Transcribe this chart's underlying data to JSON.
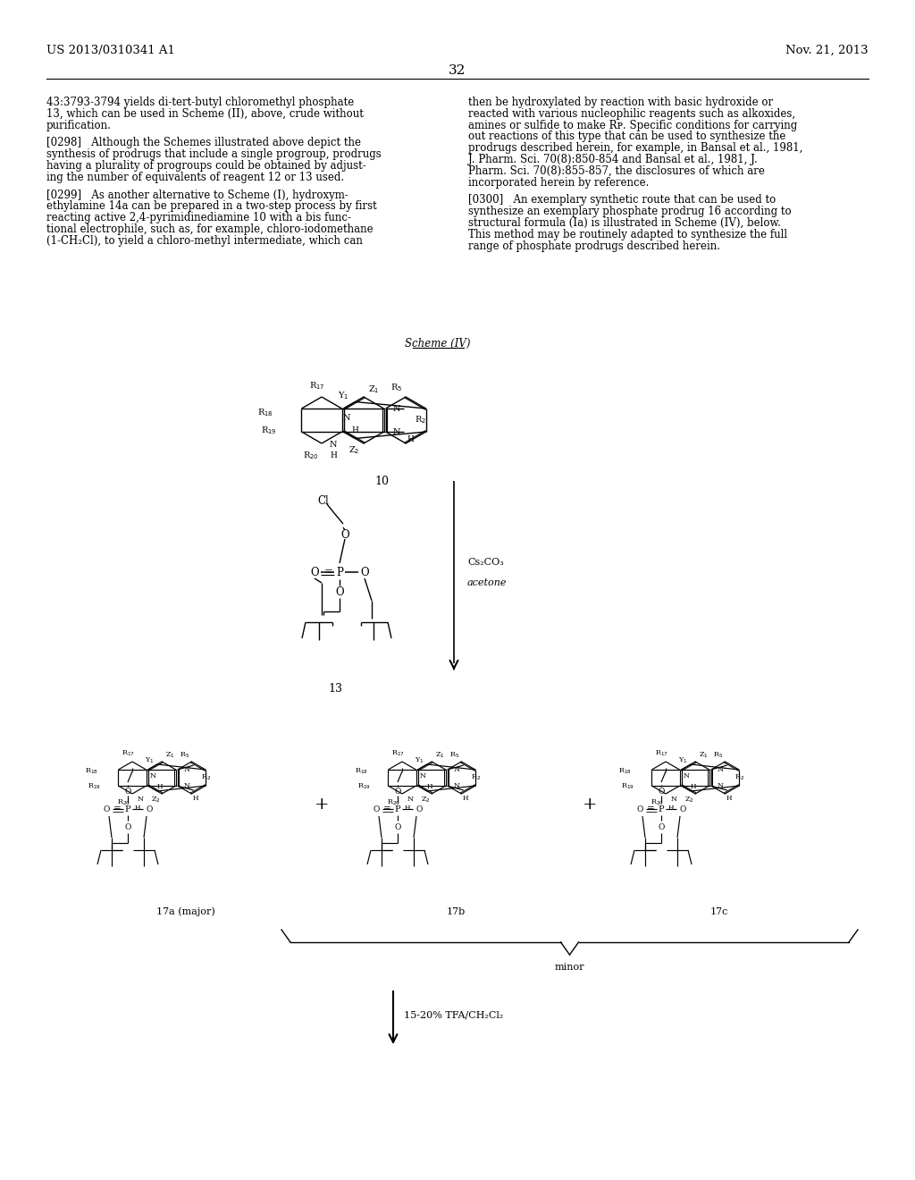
{
  "page_header_left": "US 2013/0310341 A1",
  "page_header_right": "Nov. 21, 2013",
  "page_number": "32",
  "background_color": "#ffffff",
  "text_color": "#000000",
  "body_text_left": [
    "43:3793-3794 yields di-tert-butyl chloromethyl phosphate",
    "13, which can be used in Scheme (II), above, crude without",
    "purification.",
    "",
    "[0298]   Although the Schemes illustrated above depict the",
    "synthesis of prodrugs that include a single progroup, prodrugs",
    "having a plurality of progroups could be obtained by adjust-",
    "ing the number of equivalents of reagent 12 or 13 used.",
    "",
    "[0299]   As another alternative to Scheme (I), hydroxym-",
    "ethylamine 14a can be prepared in a two-step process by first",
    "reacting active 2,4-pyrimidinediamine 10 with a bis func-",
    "tional electrophile, such as, for example, chloro-iodomethane",
    "(1-CH₂Cl), to yield a chloro-methyl intermediate, which can"
  ],
  "body_text_right": [
    "then be hydroxylated by reaction with basic hydroxide or",
    "reacted with various nucleophilic reagents such as alkoxides,",
    "amines or sulfide to make Rᴘ. Specific conditions for carrying",
    "out reactions of this type that can be used to synthesize the",
    "prodrugs described herein, for example, in Bansal et al., 1981,",
    "J. Pharm. Sci. 70(8):850-854 and Bansal et al., 1981, J.",
    "Pharm. Sci. 70(8):855-857, the disclosures of which are",
    "incorporated herein by reference.",
    "",
    "[0300]   An exemplary synthetic route that can be used to",
    "synthesize an exemplary phosphate prodrug 16 according to",
    "structural formula (Ia) is illustrated in Scheme (IV), below.",
    "This method may be routinely adapted to synthesize the full",
    "range of phosphate prodrugs described herein."
  ],
  "scheme_label": "Scheme (IV)",
  "compound_10_label": "10",
  "compound_13_label": "13",
  "reagent_cs2co3": "Cs₂CO₃",
  "reagent_acetone": "acetone",
  "compound_17a_label": "17a (major)",
  "compound_17b_label": "17b",
  "compound_17c_label": "17c",
  "minor_label": "minor",
  "arrow_label": "15-20% TFA/CH₂Cl₂",
  "plus_sign": "+",
  "fig_width": 10.24,
  "fig_height": 13.2,
  "dpi": 100
}
